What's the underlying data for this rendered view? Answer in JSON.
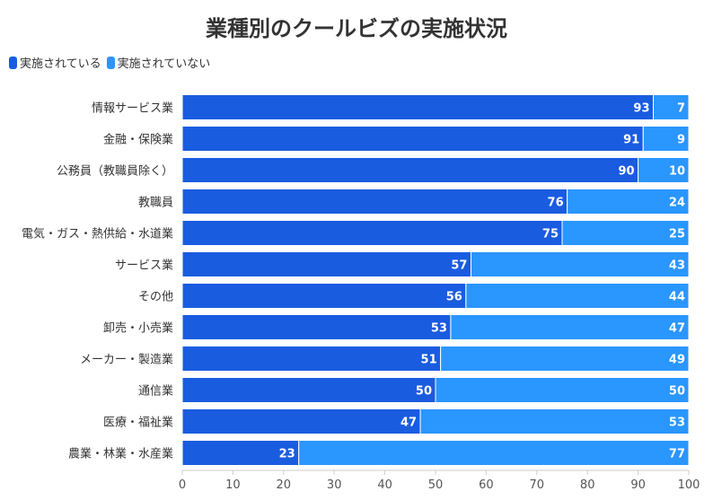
{
  "chart_data": {
    "type": "bar",
    "orientation": "horizontal",
    "stacked": true,
    "title": "業種別のクールビズの実施状況",
    "categories": [
      "情報サービス業",
      "金融・保険業",
      "公務員（教職員除く）",
      "教職員",
      "電気・ガス・熱供給・水道業",
      "サービス業",
      "その他",
      "卸売・小売業",
      "メーカー・製造業",
      "通信業",
      "医療・福祉業",
      "農業・林業・水産業"
    ],
    "series": [
      {
        "name": "実施されている",
        "color": "#1a5ce0",
        "values": [
          93,
          91,
          90,
          76,
          75,
          57,
          56,
          53,
          51,
          50,
          47,
          23
        ]
      },
      {
        "name": "実施されていない",
        "color": "#2a96ff",
        "values": [
          7,
          9,
          10,
          24,
          25,
          43,
          44,
          47,
          49,
          50,
          53,
          77
        ]
      }
    ],
    "xlim": [
      0,
      100
    ],
    "xticks": [
      0,
      10,
      20,
      30,
      40,
      50,
      60,
      70,
      80,
      90,
      100
    ],
    "legend_position": "top-left",
    "grid": false
  }
}
